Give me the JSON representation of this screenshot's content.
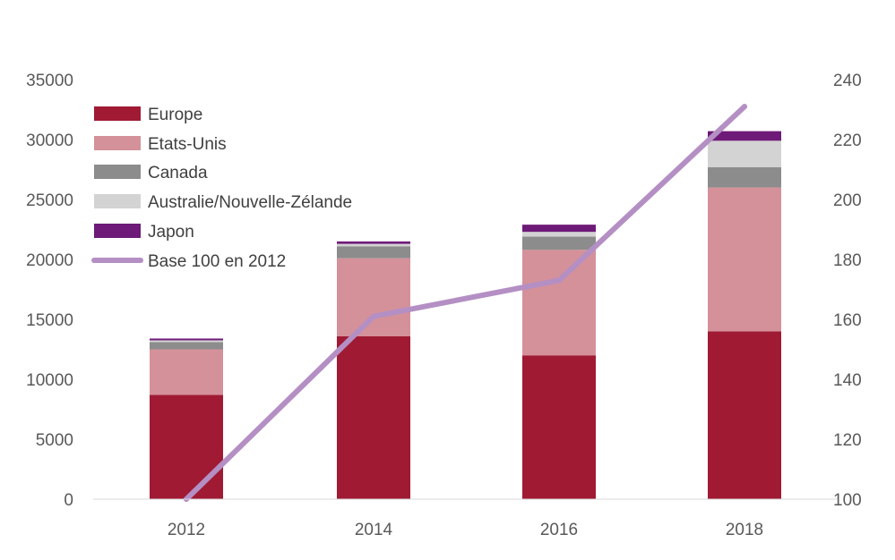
{
  "chart_data": {
    "type": "bar",
    "stacked": true,
    "categories": [
      "2012",
      "2014",
      "2016",
      "2018"
    ],
    "series": [
      {
        "name": "Europe",
        "color": "#A01A33",
        "values": [
          8700,
          13600,
          12000,
          14000
        ]
      },
      {
        "name": "Etats-Unis",
        "color": "#D4919A",
        "values": [
          3800,
          6500,
          8800,
          12000
        ]
      },
      {
        "name": "Canada",
        "color": "#8C8C8C",
        "values": [
          600,
          1000,
          1100,
          1700
        ]
      },
      {
        "name": "Australie/Nouvelle-Zélande",
        "color": "#D3D3D3",
        "values": [
          150,
          200,
          400,
          2200
        ]
      },
      {
        "name": "Japon",
        "color": "#6E1A78",
        "values": [
          150,
          200,
          600,
          800
        ]
      }
    ],
    "line_series": {
      "name": "Base 100 en 2012",
      "color": "#B48FC4",
      "axis": "right",
      "values": [
        100,
        161,
        173,
        231
      ]
    },
    "left_axis": {
      "min": 0,
      "max": 35000,
      "ticks": [
        0,
        5000,
        10000,
        15000,
        20000,
        25000,
        30000,
        35000
      ]
    },
    "right_axis": {
      "min": 100,
      "max": 240,
      "ticks": [
        100,
        120,
        140,
        160,
        180,
        200,
        220,
        240
      ]
    },
    "legend_position": "top-left",
    "grid": false
  }
}
